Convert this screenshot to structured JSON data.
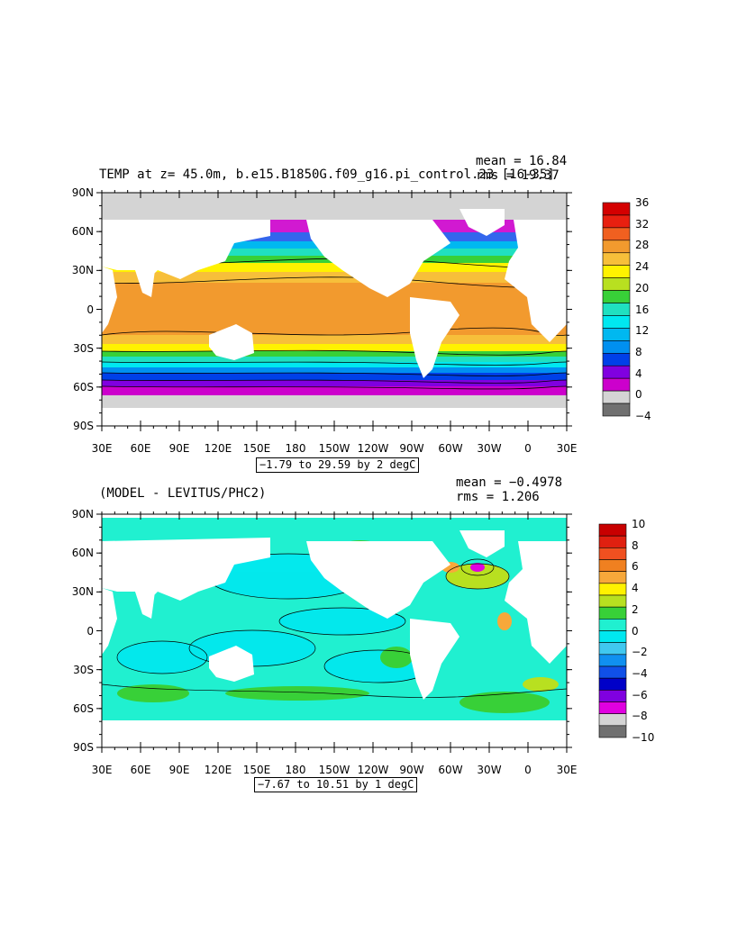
{
  "top_panel": {
    "title": "TEMP at z=  45.0m, b.e15.B1850G.f09_g16.pi_control.23 [16-35]",
    "mean_text": "mean = 16.84",
    "rms_text": "rms = 19.37",
    "contour_info": "−1.79 to 29.59 by 2 degC",
    "legend_labels": [
      "36",
      "32",
      "28",
      "24",
      "20",
      "16",
      "12",
      "8",
      "4",
      "0",
      "−4"
    ],
    "legend_colors": [
      "#d40000",
      "#e82010",
      "#f06020",
      "#f29a2e",
      "#f7bf3a",
      "#fff200",
      "#b8e020",
      "#38d038",
      "#20e0c0",
      "#00e8f0",
      "#00b8f0",
      "#0090f0",
      "#0040e8",
      "#8000e0",
      "#cc00cc",
      "#d4d4d4",
      "#707070"
    ]
  },
  "bottom_panel": {
    "title": "(MODEL - LEVITUS/PHC2)",
    "mean_text": "mean = −0.4978",
    "rms_text": "rms = 1.206",
    "contour_info": "−7.67 to 10.51 by 1 degC",
    "legend_labels": [
      "10",
      "8",
      "6",
      "4",
      "2",
      "0",
      "−2",
      "−4",
      "−6",
      "−8",
      "−10"
    ],
    "legend_colors": [
      "#c80000",
      "#e02010",
      "#f05020",
      "#f08020",
      "#f7a83a",
      "#fff200",
      "#b8e020",
      "#38d038",
      "#20f0d0",
      "#00e8f0",
      "#40c8f0",
      "#1090f0",
      "#1050e8",
      "#0000c8",
      "#8000e0",
      "#e000e0",
      "#d4d4d4",
      "#707070"
    ]
  },
  "axes": {
    "lon_labels": [
      "30E",
      "60E",
      "90E",
      "120E",
      "150E",
      "180",
      "150W",
      "120W",
      "90W",
      "60W",
      "30W",
      "0",
      "30E"
    ],
    "lat_labels": [
      "90N",
      "60N",
      "30N",
      "0",
      "30S",
      "60S",
      "90S"
    ]
  },
  "chart_data": [
    {
      "type": "heatmap",
      "title": "TEMP at z=  45.0m, b.e15.B1850G.f09_g16.pi_control.23 [16-35]",
      "xlabel": "",
      "ylabel": "",
      "x_ticks": [
        "30E",
        "60E",
        "90E",
        "120E",
        "150E",
        "180",
        "150W",
        "120W",
        "90W",
        "60W",
        "30W",
        "0",
        "30E"
      ],
      "y_ticks": [
        "90N",
        "60N",
        "30N",
        "0",
        "30S",
        "60S",
        "90S"
      ],
      "mean": 16.84,
      "rms": 19.37,
      "contour_min": -1.79,
      "contour_max": 29.59,
      "contour_interval": 2,
      "units": "degC",
      "colorbar_levels": [
        36,
        32,
        28,
        24,
        20,
        16,
        12,
        8,
        4,
        0,
        -4
      ]
    },
    {
      "type": "heatmap",
      "title": "(MODEL - LEVITUS/PHC2)",
      "xlabel": "",
      "ylabel": "",
      "x_ticks": [
        "30E",
        "60E",
        "90E",
        "120E",
        "150E",
        "180",
        "150W",
        "120W",
        "90W",
        "60W",
        "30W",
        "0",
        "30E"
      ],
      "y_ticks": [
        "90N",
        "60N",
        "30N",
        "0",
        "30S",
        "60S",
        "90S"
      ],
      "mean": -0.4978,
      "rms": 1.206,
      "contour_min": -7.67,
      "contour_max": 10.51,
      "contour_interval": 1,
      "units": "degC",
      "colorbar_levels": [
        10,
        8,
        6,
        4,
        2,
        0,
        -2,
        -4,
        -6,
        -8,
        -10
      ]
    }
  ]
}
